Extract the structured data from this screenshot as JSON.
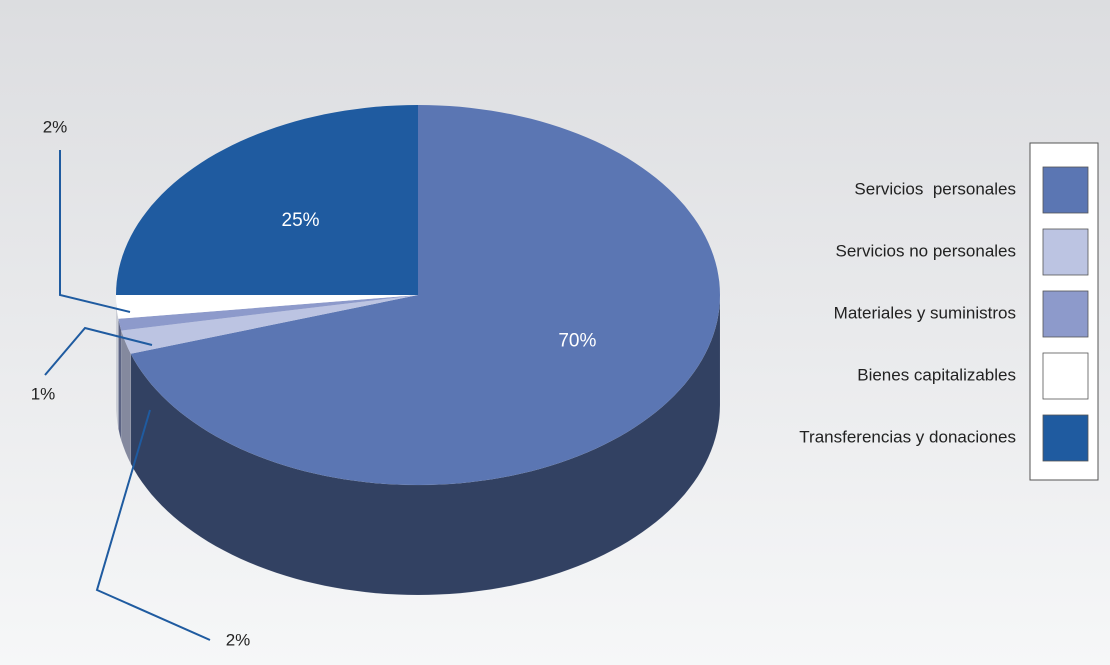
{
  "chart_data": {
    "type": "pie",
    "categories": [
      "Servicios  personales",
      "Servicios no personales",
      "Materiales y suministros",
      "Bienes capitalizables",
      "Transferencias y donaciones"
    ],
    "values": [
      70,
      2,
      1,
      2,
      25
    ],
    "value_labels": [
      "70%",
      "2%",
      "1%",
      "2%",
      "25%"
    ],
    "colors": [
      "#5b76b3",
      "#bcc4e2",
      "#8d9acb",
      "#ffffff",
      "#1f5ba0"
    ],
    "legend": "right"
  }
}
